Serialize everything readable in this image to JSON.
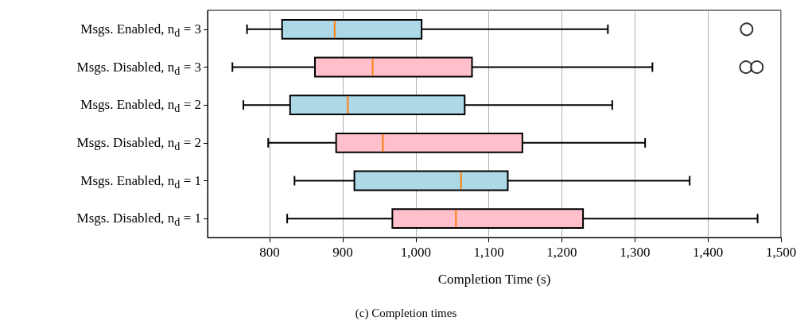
{
  "chart_data": {
    "type": "box",
    "orientation": "horizontal",
    "xlabel": "Completion Time (s)",
    "annotations": [
      "(c) Completion times"
    ],
    "categories": [
      "Msgs. Enabled, n$_{d}$ = 3",
      "Msgs. Disabled, n$_{d}$ = 3",
      "Msgs. Enabled, n$_{d}$ = 2",
      "Msgs. Disabled, n$_{d}$ = 2",
      "Msgs. Enabled, n$_{d}$ = 1",
      "Msgs. Disabled, n$_{d}$ = 1"
    ],
    "colors": [
      "#add8e6",
      "#ffc0cb",
      "#add8e6",
      "#ffc0cb",
      "#add8e6",
      "#ffc0cb"
    ],
    "boxes": [
      {
        "low": 769,
        "q1": 817,
        "median": 889,
        "q3": 1008,
        "high": 1263,
        "outliers": [
          1453
        ]
      },
      {
        "low": 749,
        "q1": 862,
        "median": 941,
        "q3": 1077,
        "high": 1324,
        "outliers": [
          1452,
          1467
        ]
      },
      {
        "low": 764,
        "q1": 828,
        "median": 907,
        "q3": 1067,
        "high": 1269
      },
      {
        "low": 798,
        "q1": 891,
        "median": 955,
        "q3": 1146,
        "high": 1314
      },
      {
        "low": 834,
        "q1": 916,
        "median": 1062,
        "q3": 1126,
        "high": 1375
      },
      {
        "low": 824,
        "q1": 968,
        "median": 1055,
        "q3": 1229,
        "high": 1468
      }
    ],
    "xlim": [
      715,
      1500
    ],
    "xticks": [
      800,
      900,
      {
        "value": 1000,
        "label": "1,000"
      },
      {
        "value": 1100,
        "label": "1,100"
      },
      {
        "value": 1200,
        "label": "1,200"
      },
      {
        "value": 1300,
        "label": "1,300"
      },
      {
        "value": 1400,
        "label": "1,400"
      },
      {
        "value": 1500,
        "label": "1,500"
      }
    ],
    "grid": "x"
  }
}
